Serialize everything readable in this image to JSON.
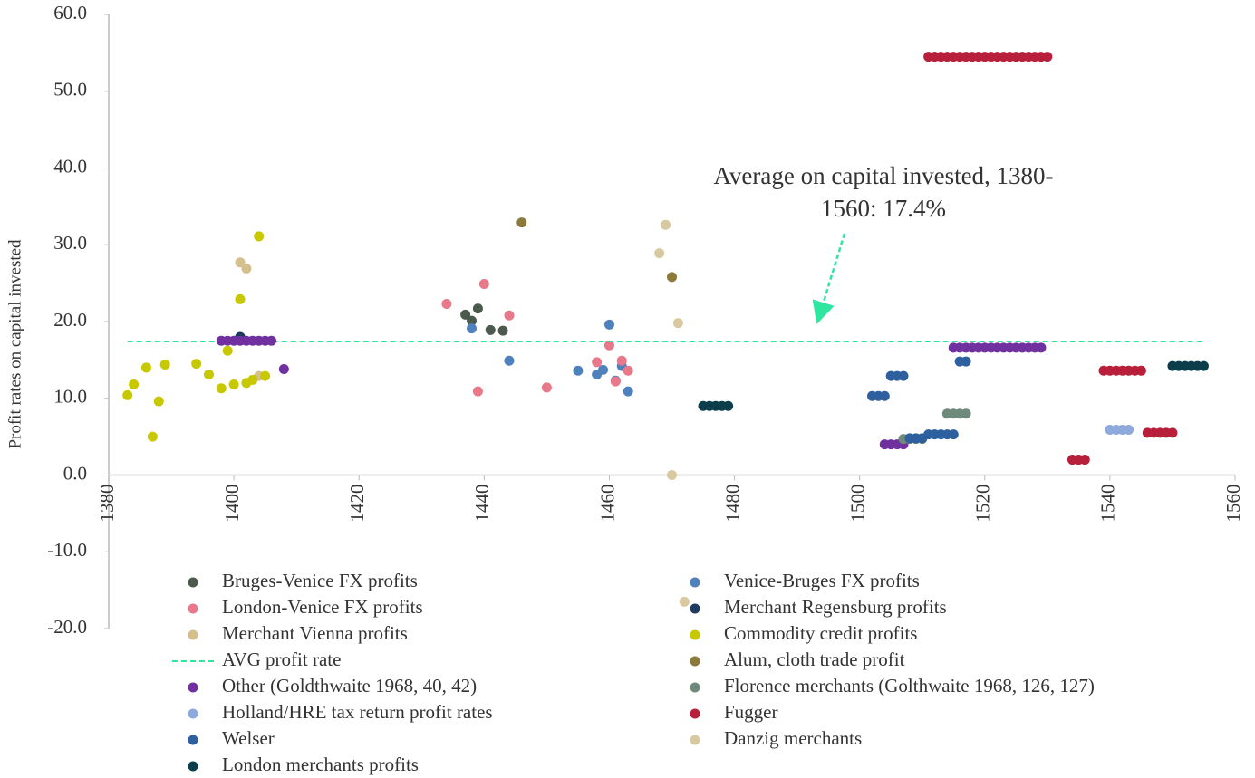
{
  "chart_data": {
    "type": "scatter",
    "y_label": "Profit rates on capital invested",
    "annotation": "Average on capital invested, 1380-1560: 17.4%",
    "xlim": [
      1380,
      1560
    ],
    "xticks": [
      1380,
      1400,
      1420,
      1440,
      1460,
      1480,
      1500,
      1520,
      1540,
      1560
    ],
    "ylim": [
      -20,
      60
    ],
    "yticks": [
      {
        "value": -20,
        "label": "-20.0"
      },
      {
        "value": -10,
        "label": "-10.0"
      },
      {
        "value": 0,
        "label": "0.0"
      },
      {
        "value": 10,
        "label": "10.0"
      },
      {
        "value": 20,
        "label": "20.0"
      },
      {
        "value": 30,
        "label": "30.0"
      },
      {
        "value": 40,
        "label": "40.0"
      },
      {
        "value": 50,
        "label": "50.0"
      },
      {
        "value": 60,
        "label": "60.0"
      }
    ],
    "series": [
      {
        "name": "Bruges-Venice FX profits",
        "color": "#4b5a4c",
        "x": [
          1437,
          1438,
          1439,
          1441,
          1443
        ],
        "values": [
          20.9,
          20.1,
          21.7,
          18.9,
          18.8
        ]
      },
      {
        "name": "Venice-Bruges FX profits",
        "color": "#4f81bd",
        "x": [
          1438,
          1444,
          1455,
          1458,
          1459,
          1460,
          1461,
          1462,
          1463
        ],
        "values": [
          19.1,
          14.9,
          13.6,
          13.1,
          13.7,
          19.6,
          12.3,
          14.2,
          10.9
        ]
      },
      {
        "name": "London-Venice FX profits",
        "color": "#e8788a",
        "x": [
          1434,
          1439,
          1440,
          1444,
          1450,
          1458,
          1460,
          1461,
          1462,
          1463
        ],
        "values": [
          22.3,
          10.9,
          24.9,
          20.8,
          11.4,
          14.7,
          16.9,
          12.2,
          14.9,
          13.6
        ]
      },
      {
        "name": "Merchant Regensburg profits",
        "color": "#1f3a5f",
        "x": [
          1401
        ],
        "values": [
          18.0
        ]
      },
      {
        "name": "Merchant Vienna profits",
        "color": "#d4c08c",
        "x": [
          1401,
          1402,
          1404
        ],
        "values": [
          27.7,
          26.9,
          12.9
        ]
      },
      {
        "name": "Commodity credit profits",
        "color": "#c8c800",
        "x": [
          1383,
          1384,
          1386,
          1387,
          1388,
          1389,
          1394,
          1396,
          1398,
          1399,
          1400,
          1401,
          1402,
          1403,
          1404,
          1405
        ],
        "values": [
          10.4,
          11.8,
          14.0,
          5.0,
          9.6,
          14.4,
          14.5,
          13.1,
          11.3,
          16.2,
          11.8,
          22.9,
          12.0,
          12.4,
          31.1,
          12.9
        ]
      },
      {
        "name": "AVG profit rate",
        "color": "#2ee6a0",
        "kind": "dashed-line",
        "x": [
          1383,
          1555
        ],
        "values": [
          17.4,
          17.4
        ]
      },
      {
        "name": "Alum, cloth trade profit",
        "color": "#8b7a3a",
        "x": [
          1446,
          1470
        ],
        "values": [
          32.9,
          25.8
        ]
      },
      {
        "name": "Other (Goldthwaite 1968, 40, 42)",
        "color": "#7030a0",
        "x": [
          1398,
          1399,
          1400,
          1401,
          1402,
          1403,
          1404,
          1405,
          1406,
          1408,
          1504,
          1505,
          1506,
          1507,
          1515,
          1516,
          1517,
          1518,
          1519,
          1520,
          1521,
          1522,
          1523,
          1524,
          1525,
          1526,
          1527,
          1528,
          1529
        ],
        "values": [
          17.5,
          17.5,
          17.5,
          17.5,
          17.5,
          17.5,
          17.5,
          17.5,
          17.5,
          13.8,
          4.0,
          4.0,
          4.0,
          4.0,
          16.6,
          16.6,
          16.6,
          16.6,
          16.6,
          16.6,
          16.6,
          16.6,
          16.6,
          16.6,
          16.6,
          16.6,
          16.6,
          16.6,
          16.6
        ]
      },
      {
        "name": "Florence merchants (Golthwaite 1968, 126, 127)",
        "color": "#6f8a7a",
        "x": [
          1507,
          1508,
          1509,
          1510,
          1514,
          1515,
          1516,
          1517
        ],
        "values": [
          4.7,
          4.7,
          4.7,
          4.7,
          8.0,
          8.0,
          8.0,
          8.0
        ]
      },
      {
        "name": "Holland/HRE tax return profit rates",
        "color": "#8eaadc",
        "x": [
          1540,
          1541,
          1542,
          1543
        ],
        "values": [
          5.9,
          5.9,
          5.9,
          5.9
        ]
      },
      {
        "name": "Fugger",
        "color": "#b81f3a",
        "x": [
          1511,
          1512,
          1513,
          1514,
          1515,
          1516,
          1517,
          1518,
          1519,
          1520,
          1521,
          1522,
          1523,
          1524,
          1525,
          1526,
          1527,
          1528,
          1529,
          1530,
          1534,
          1535,
          1536,
          1539,
          1540,
          1541,
          1542,
          1543,
          1544,
          1545,
          1546,
          1547,
          1548,
          1549,
          1550
        ],
        "values": [
          54.5,
          54.5,
          54.5,
          54.5,
          54.5,
          54.5,
          54.5,
          54.5,
          54.5,
          54.5,
          54.5,
          54.5,
          54.5,
          54.5,
          54.5,
          54.5,
          54.5,
          54.5,
          54.5,
          54.5,
          2.0,
          2.0,
          2.0,
          13.6,
          13.6,
          13.6,
          13.6,
          13.6,
          13.6,
          13.6,
          5.5,
          5.5,
          5.5,
          5.5,
          5.5
        ]
      },
      {
        "name": "Welser",
        "color": "#2e5f9e",
        "x": [
          1502,
          1503,
          1504,
          1505,
          1506,
          1507,
          1508,
          1509,
          1510,
          1511,
          1512,
          1513,
          1514,
          1515,
          1516,
          1517
        ],
        "values": [
          10.3,
          10.3,
          10.3,
          12.9,
          12.9,
          12.9,
          4.8,
          4.8,
          4.8,
          5.3,
          5.3,
          5.3,
          5.3,
          5.3,
          14.8,
          14.8
        ]
      },
      {
        "name": "Danzig merchants",
        "color": "#d9c9a0",
        "x": [
          1468,
          1469,
          1470,
          1471,
          1472
        ],
        "values": [
          28.9,
          32.6,
          0,
          19.8,
          -16.5
        ]
      },
      {
        "name": "London merchants profits",
        "color": "#0b3d4a",
        "x": [
          1475,
          1476,
          1477,
          1478,
          1479,
          1550,
          1551,
          1552,
          1553,
          1554,
          1555
        ],
        "values": [
          9.0,
          9.0,
          9.0,
          9.0,
          9.0,
          14.2,
          14.2,
          14.2,
          14.2,
          14.2,
          14.2
        ]
      }
    ]
  }
}
